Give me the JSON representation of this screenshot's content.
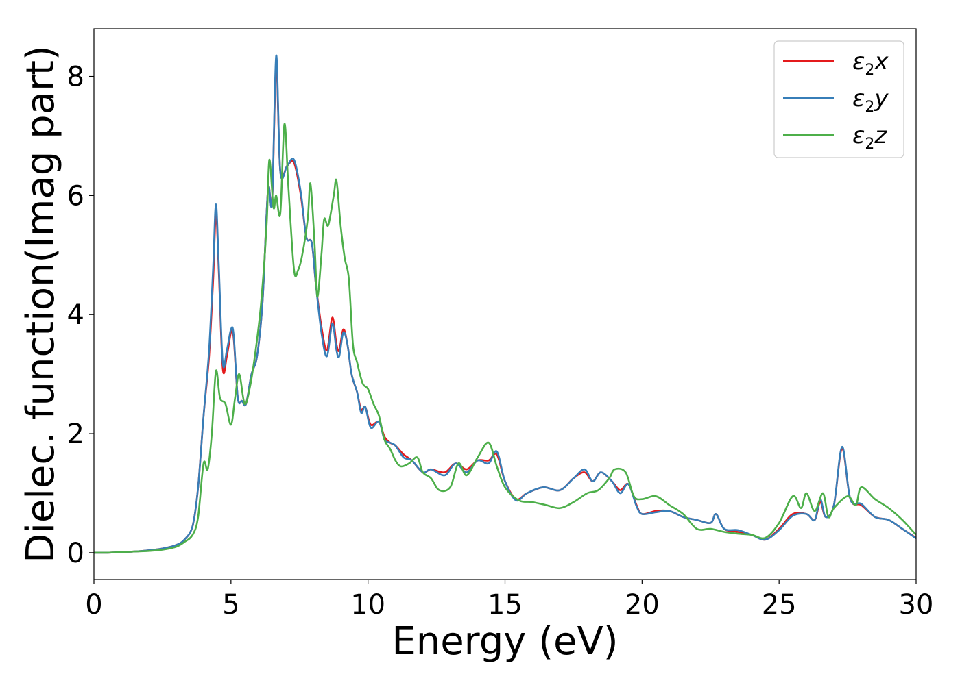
{
  "chart_data": {
    "type": "line",
    "xlabel": "Energy (eV)",
    "ylabel": "Dielec. function(Imag part)",
    "xlim": [
      0,
      30
    ],
    "ylim": [
      -0.45,
      8.8
    ],
    "xticks": [
      0,
      5,
      10,
      15,
      20,
      25,
      30
    ],
    "yticks": [
      0,
      2,
      4,
      6,
      8
    ],
    "grid": false,
    "legend_position": "top-right",
    "series": [
      {
        "name": "ε2x",
        "legend": {
          "base": "ε",
          "sub": "2",
          "var": "x"
        },
        "color": "#e41a1c",
        "points": [
          [
            0,
            0
          ],
          [
            0.5,
            0
          ],
          [
            1,
            0.01
          ],
          [
            1.5,
            0.02
          ],
          [
            2,
            0.04
          ],
          [
            2.5,
            0.07
          ],
          [
            3,
            0.13
          ],
          [
            3.3,
            0.22
          ],
          [
            3.6,
            0.45
          ],
          [
            3.8,
            1.1
          ],
          [
            4.0,
            2.3
          ],
          [
            4.2,
            3.3
          ],
          [
            4.35,
            4.6
          ],
          [
            4.45,
            5.7
          ],
          [
            4.55,
            4.8
          ],
          [
            4.7,
            3.1
          ],
          [
            4.85,
            3.3
          ],
          [
            5.0,
            3.7
          ],
          [
            5.1,
            3.6
          ],
          [
            5.25,
            2.6
          ],
          [
            5.4,
            2.55
          ],
          [
            5.55,
            2.5
          ],
          [
            5.75,
            3.0
          ],
          [
            5.95,
            3.3
          ],
          [
            6.15,
            4.2
          ],
          [
            6.35,
            6.1
          ],
          [
            6.5,
            5.9
          ],
          [
            6.65,
            8.2
          ],
          [
            6.8,
            6.4
          ],
          [
            7.05,
            6.5
          ],
          [
            7.3,
            6.55
          ],
          [
            7.55,
            6.0
          ],
          [
            7.75,
            5.3
          ],
          [
            7.95,
            5.2
          ],
          [
            8.1,
            4.5
          ],
          [
            8.3,
            3.8
          ],
          [
            8.5,
            3.4
          ],
          [
            8.7,
            3.95
          ],
          [
            8.85,
            3.5
          ],
          [
            8.95,
            3.4
          ],
          [
            9.1,
            3.75
          ],
          [
            9.25,
            3.5
          ],
          [
            9.4,
            3.0
          ],
          [
            9.6,
            2.7
          ],
          [
            9.75,
            2.4
          ],
          [
            9.9,
            2.45
          ],
          [
            10.1,
            2.15
          ],
          [
            10.4,
            2.2
          ],
          [
            10.6,
            1.95
          ],
          [
            10.8,
            1.85
          ],
          [
            11.0,
            1.8
          ],
          [
            11.3,
            1.65
          ],
          [
            11.6,
            1.55
          ],
          [
            12.0,
            1.35
          ],
          [
            12.3,
            1.4
          ],
          [
            12.8,
            1.35
          ],
          [
            13.2,
            1.5
          ],
          [
            13.6,
            1.4
          ],
          [
            14.0,
            1.55
          ],
          [
            14.4,
            1.55
          ],
          [
            14.7,
            1.65
          ],
          [
            15.0,
            1.2
          ],
          [
            15.4,
            0.9
          ],
          [
            15.8,
            1.0
          ],
          [
            16.4,
            1.1
          ],
          [
            17.0,
            1.05
          ],
          [
            17.5,
            1.25
          ],
          [
            17.9,
            1.35
          ],
          [
            18.2,
            1.2
          ],
          [
            18.5,
            1.35
          ],
          [
            18.9,
            1.2
          ],
          [
            19.2,
            1.05
          ],
          [
            19.5,
            1.15
          ],
          [
            19.8,
            0.8
          ],
          [
            20.0,
            0.65
          ],
          [
            20.5,
            0.7
          ],
          [
            21.0,
            0.7
          ],
          [
            21.5,
            0.6
          ],
          [
            22.0,
            0.55
          ],
          [
            22.5,
            0.5
          ],
          [
            22.7,
            0.65
          ],
          [
            23.0,
            0.4
          ],
          [
            23.5,
            0.35
          ],
          [
            24.0,
            0.3
          ],
          [
            24.5,
            0.22
          ],
          [
            25.0,
            0.4
          ],
          [
            25.5,
            0.65
          ],
          [
            26.0,
            0.65
          ],
          [
            26.3,
            0.55
          ],
          [
            26.5,
            0.85
          ],
          [
            26.7,
            0.6
          ],
          [
            27.0,
            0.8
          ],
          [
            27.3,
            1.75
          ],
          [
            27.6,
            0.9
          ],
          [
            28.0,
            0.8
          ],
          [
            28.5,
            0.6
          ],
          [
            29.0,
            0.55
          ],
          [
            29.5,
            0.4
          ],
          [
            30.0,
            0.25
          ]
        ]
      },
      {
        "name": "ε2y",
        "legend": {
          "base": "ε",
          "sub": "2",
          "var": "y"
        },
        "color": "#377eb8",
        "points": [
          [
            0,
            0
          ],
          [
            0.5,
            0
          ],
          [
            1,
            0.01
          ],
          [
            1.5,
            0.02
          ],
          [
            2,
            0.04
          ],
          [
            2.5,
            0.07
          ],
          [
            3,
            0.13
          ],
          [
            3.3,
            0.22
          ],
          [
            3.6,
            0.45
          ],
          [
            3.8,
            1.1
          ],
          [
            4.0,
            2.3
          ],
          [
            4.2,
            3.4
          ],
          [
            4.35,
            4.8
          ],
          [
            4.45,
            5.85
          ],
          [
            4.55,
            4.9
          ],
          [
            4.7,
            3.2
          ],
          [
            4.85,
            3.4
          ],
          [
            5.0,
            3.75
          ],
          [
            5.1,
            3.65
          ],
          [
            5.25,
            2.6
          ],
          [
            5.4,
            2.55
          ],
          [
            5.55,
            2.5
          ],
          [
            5.75,
            3.0
          ],
          [
            5.95,
            3.3
          ],
          [
            6.15,
            4.2
          ],
          [
            6.35,
            6.1
          ],
          [
            6.5,
            5.9
          ],
          [
            6.65,
            8.35
          ],
          [
            6.8,
            6.4
          ],
          [
            7.05,
            6.5
          ],
          [
            7.3,
            6.6
          ],
          [
            7.55,
            6.05
          ],
          [
            7.75,
            5.3
          ],
          [
            7.95,
            5.2
          ],
          [
            8.1,
            4.5
          ],
          [
            8.3,
            3.7
          ],
          [
            8.5,
            3.3
          ],
          [
            8.7,
            3.85
          ],
          [
            8.85,
            3.4
          ],
          [
            8.95,
            3.3
          ],
          [
            9.1,
            3.7
          ],
          [
            9.25,
            3.5
          ],
          [
            9.4,
            3.0
          ],
          [
            9.6,
            2.7
          ],
          [
            9.75,
            2.35
          ],
          [
            9.9,
            2.45
          ],
          [
            10.1,
            2.1
          ],
          [
            10.4,
            2.2
          ],
          [
            10.6,
            1.9
          ],
          [
            10.8,
            1.85
          ],
          [
            11.0,
            1.8
          ],
          [
            11.3,
            1.6
          ],
          [
            11.6,
            1.55
          ],
          [
            12.0,
            1.35
          ],
          [
            12.3,
            1.4
          ],
          [
            12.8,
            1.3
          ],
          [
            13.2,
            1.5
          ],
          [
            13.6,
            1.35
          ],
          [
            14.0,
            1.55
          ],
          [
            14.4,
            1.5
          ],
          [
            14.7,
            1.7
          ],
          [
            15.0,
            1.2
          ],
          [
            15.4,
            0.88
          ],
          [
            15.8,
            1.0
          ],
          [
            16.4,
            1.1
          ],
          [
            17.0,
            1.05
          ],
          [
            17.5,
            1.25
          ],
          [
            17.9,
            1.4
          ],
          [
            18.2,
            1.2
          ],
          [
            18.5,
            1.35
          ],
          [
            18.9,
            1.2
          ],
          [
            19.2,
            1.0
          ],
          [
            19.5,
            1.15
          ],
          [
            19.8,
            0.78
          ],
          [
            20.0,
            0.65
          ],
          [
            20.5,
            0.68
          ],
          [
            21.0,
            0.7
          ],
          [
            21.5,
            0.6
          ],
          [
            22.0,
            0.55
          ],
          [
            22.5,
            0.5
          ],
          [
            22.7,
            0.65
          ],
          [
            23.0,
            0.4
          ],
          [
            23.5,
            0.38
          ],
          [
            24.0,
            0.3
          ],
          [
            24.5,
            0.22
          ],
          [
            25.0,
            0.38
          ],
          [
            25.5,
            0.62
          ],
          [
            26.0,
            0.65
          ],
          [
            26.3,
            0.55
          ],
          [
            26.5,
            0.9
          ],
          [
            26.7,
            0.6
          ],
          [
            27.0,
            0.8
          ],
          [
            27.3,
            1.78
          ],
          [
            27.6,
            0.9
          ],
          [
            28.0,
            0.82
          ],
          [
            28.5,
            0.6
          ],
          [
            29.0,
            0.55
          ],
          [
            29.5,
            0.4
          ],
          [
            30.0,
            0.24
          ]
        ]
      },
      {
        "name": "ε2z",
        "legend": {
          "base": "ε",
          "sub": "2",
          "var": "z"
        },
        "color": "#4daf4a",
        "points": [
          [
            0,
            0
          ],
          [
            0.5,
            0
          ],
          [
            1,
            0.01
          ],
          [
            1.5,
            0.02
          ],
          [
            2,
            0.03
          ],
          [
            2.5,
            0.05
          ],
          [
            3,
            0.1
          ],
          [
            3.3,
            0.18
          ],
          [
            3.6,
            0.3
          ],
          [
            3.8,
            0.6
          ],
          [
            4.0,
            1.5
          ],
          [
            4.15,
            1.4
          ],
          [
            4.3,
            2.0
          ],
          [
            4.45,
            3.05
          ],
          [
            4.6,
            2.6
          ],
          [
            4.8,
            2.5
          ],
          [
            5.0,
            2.15
          ],
          [
            5.15,
            2.6
          ],
          [
            5.3,
            3.0
          ],
          [
            5.5,
            2.5
          ],
          [
            5.7,
            2.8
          ],
          [
            5.9,
            3.4
          ],
          [
            6.1,
            4.2
          ],
          [
            6.3,
            5.5
          ],
          [
            6.4,
            6.6
          ],
          [
            6.55,
            5.8
          ],
          [
            6.65,
            6.0
          ],
          [
            6.8,
            5.7
          ],
          [
            6.95,
            7.2
          ],
          [
            7.1,
            6.1
          ],
          [
            7.3,
            4.75
          ],
          [
            7.45,
            4.75
          ],
          [
            7.6,
            5.0
          ],
          [
            7.8,
            5.6
          ],
          [
            7.9,
            6.2
          ],
          [
            8.05,
            5.2
          ],
          [
            8.15,
            4.3
          ],
          [
            8.3,
            5.0
          ],
          [
            8.4,
            5.6
          ],
          [
            8.55,
            5.5
          ],
          [
            8.75,
            6.0
          ],
          [
            8.85,
            6.25
          ],
          [
            9.0,
            5.5
          ],
          [
            9.15,
            4.95
          ],
          [
            9.3,
            4.6
          ],
          [
            9.45,
            3.5
          ],
          [
            9.6,
            3.2
          ],
          [
            9.8,
            2.85
          ],
          [
            10.0,
            2.75
          ],
          [
            10.2,
            2.5
          ],
          [
            10.4,
            2.3
          ],
          [
            10.6,
            1.9
          ],
          [
            10.8,
            1.75
          ],
          [
            11.0,
            1.55
          ],
          [
            11.2,
            1.45
          ],
          [
            11.5,
            1.5
          ],
          [
            11.8,
            1.6
          ],
          [
            12.0,
            1.35
          ],
          [
            12.3,
            1.25
          ],
          [
            12.6,
            1.05
          ],
          [
            13.0,
            1.1
          ],
          [
            13.3,
            1.5
          ],
          [
            13.6,
            1.3
          ],
          [
            14.0,
            1.6
          ],
          [
            14.4,
            1.85
          ],
          [
            14.7,
            1.45
          ],
          [
            15.0,
            1.1
          ],
          [
            15.5,
            0.88
          ],
          [
            16.0,
            0.85
          ],
          [
            16.5,
            0.8
          ],
          [
            17.0,
            0.75
          ],
          [
            17.5,
            0.85
          ],
          [
            18.0,
            1.0
          ],
          [
            18.4,
            1.05
          ],
          [
            18.8,
            1.25
          ],
          [
            19.0,
            1.4
          ],
          [
            19.4,
            1.35
          ],
          [
            19.7,
            0.95
          ],
          [
            20.0,
            0.9
          ],
          [
            20.5,
            0.95
          ],
          [
            21.0,
            0.8
          ],
          [
            21.5,
            0.65
          ],
          [
            22.0,
            0.4
          ],
          [
            22.5,
            0.4
          ],
          [
            23.0,
            0.35
          ],
          [
            23.5,
            0.32
          ],
          [
            24.0,
            0.3
          ],
          [
            24.5,
            0.25
          ],
          [
            25.0,
            0.5
          ],
          [
            25.5,
            0.95
          ],
          [
            25.8,
            0.75
          ],
          [
            26.0,
            1.0
          ],
          [
            26.3,
            0.7
          ],
          [
            26.6,
            1.0
          ],
          [
            26.8,
            0.6
          ],
          [
            27.0,
            0.75
          ],
          [
            27.5,
            0.95
          ],
          [
            27.8,
            0.8
          ],
          [
            28.0,
            1.1
          ],
          [
            28.5,
            0.9
          ],
          [
            29.0,
            0.75
          ],
          [
            29.5,
            0.55
          ],
          [
            30.0,
            0.3
          ]
        ]
      }
    ]
  }
}
